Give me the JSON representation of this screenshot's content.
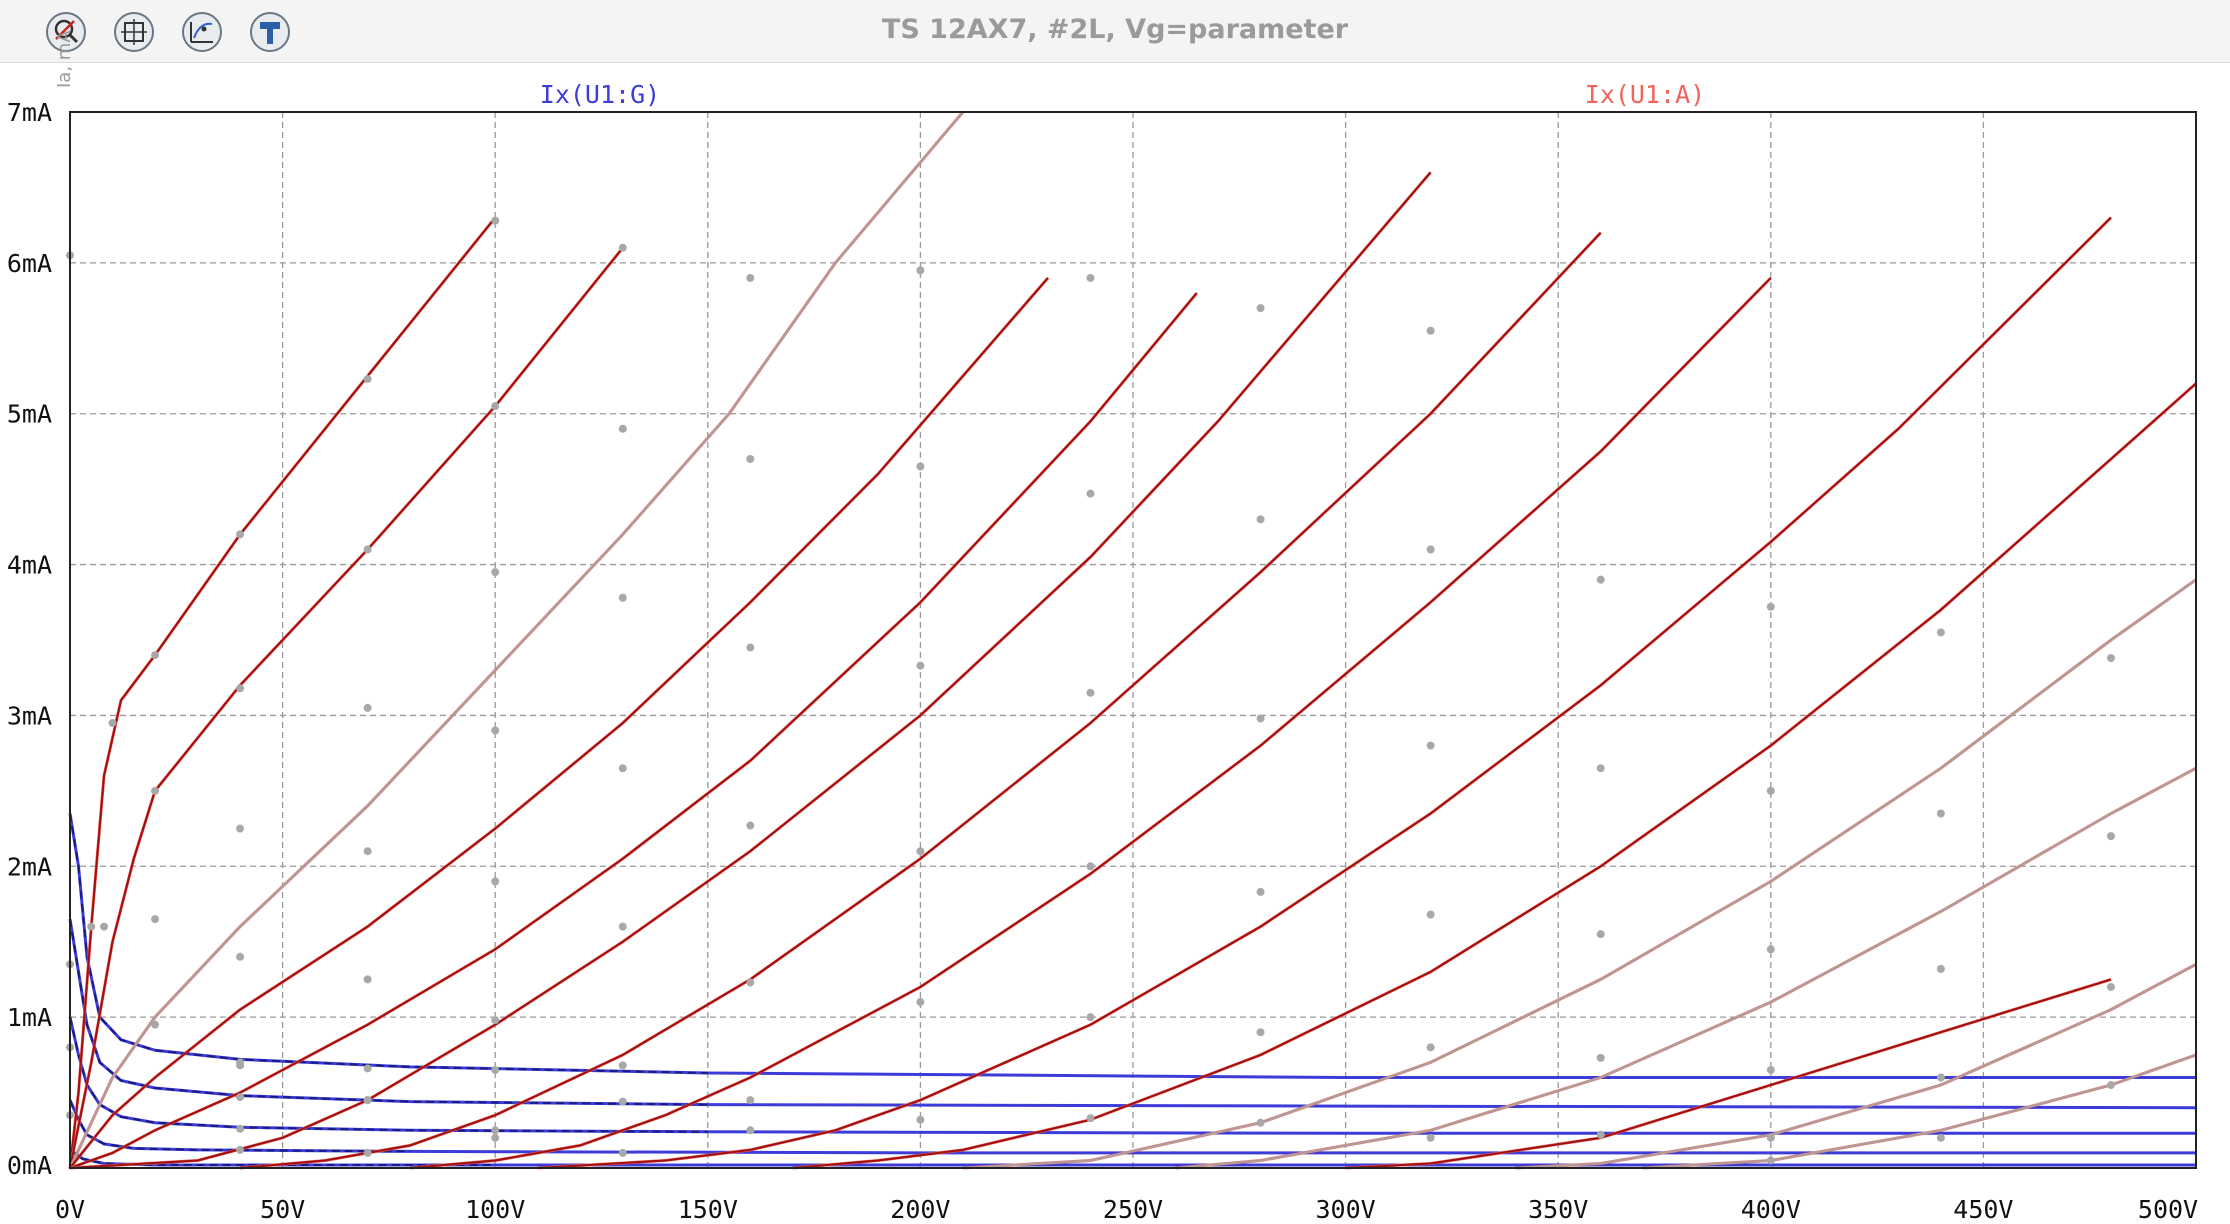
{
  "window": {
    "title": "TS 12AX7, #2L, Vg=parameter",
    "y_axis_label": "Ia, mA",
    "toolbar": [
      {
        "icon": "zoom-cancel-icon"
      },
      {
        "icon": "fit-view-icon"
      },
      {
        "icon": "cursor-probe-icon"
      },
      {
        "icon": "settings-hammer-icon"
      }
    ]
  },
  "chart_data": {
    "type": "line",
    "title": "TS 12AX7, #2L, Vg=parameter",
    "xlabel": "",
    "ylabel": "",
    "x_unit": "V",
    "y_unit": "mA",
    "xlim": [
      0,
      500
    ],
    "ylim": [
      0,
      7
    ],
    "x_ticks": [
      "0V",
      "50V",
      "100V",
      "150V",
      "200V",
      "250V",
      "300V",
      "350V",
      "400V",
      "450V",
      "500V"
    ],
    "y_ticks": [
      "0mA",
      "1mA",
      "2mA",
      "3mA",
      "4mA",
      "5mA",
      "6mA",
      "7mA"
    ],
    "grid": true,
    "legend": [
      {
        "name": "Ix(U1:G)",
        "color": "#3c3cd8",
        "position": "top-left"
      },
      {
        "name": "Ix(U1:A)",
        "color": "#f0645a",
        "position": "top-right"
      }
    ],
    "colors": {
      "anode": "#f0645a",
      "anode_dark": "#a01010",
      "grid": "#9a9a9a",
      "grid_current": "#3c3cd8",
      "measured": "#a8a8a8"
    },
    "anode_curves": [
      {
        "dark": true,
        "points": [
          [
            0,
            0
          ],
          [
            2,
            0.5
          ],
          [
            5,
            1.6
          ],
          [
            8,
            2.6
          ],
          [
            12,
            3.1
          ],
          [
            20,
            3.4
          ],
          [
            40,
            4.2
          ],
          [
            70,
            5.25
          ],
          [
            100,
            6.3
          ]
        ]
      },
      {
        "dark": true,
        "points": [
          [
            0,
            0
          ],
          [
            5,
            0.7
          ],
          [
            10,
            1.5
          ],
          [
            15,
            2.05
          ],
          [
            20,
            2.5
          ],
          [
            40,
            3.2
          ],
          [
            70,
            4.1
          ],
          [
            100,
            5.05
          ],
          [
            130,
            6.1
          ]
        ]
      },
      {
        "dark": false,
        "points": [
          [
            0,
            0
          ],
          [
            10,
            0.6
          ],
          [
            20,
            1.0
          ],
          [
            40,
            1.6
          ],
          [
            70,
            2.4
          ],
          [
            100,
            3.3
          ],
          [
            130,
            4.2
          ],
          [
            155,
            5.0
          ],
          [
            180,
            6.0
          ],
          [
            210,
            7.0
          ]
        ]
      },
      {
        "dark": true,
        "points": [
          [
            0,
            0
          ],
          [
            10,
            0.35
          ],
          [
            20,
            0.6
          ],
          [
            40,
            1.05
          ],
          [
            70,
            1.6
          ],
          [
            100,
            2.25
          ],
          [
            130,
            2.95
          ],
          [
            160,
            3.75
          ],
          [
            190,
            4.6
          ],
          [
            230,
            5.9
          ]
        ]
      },
      {
        "dark": true,
        "points": [
          [
            0,
            0
          ],
          [
            10,
            0.1
          ],
          [
            20,
            0.25
          ],
          [
            40,
            0.5
          ],
          [
            70,
            0.95
          ],
          [
            100,
            1.45
          ],
          [
            130,
            2.05
          ],
          [
            160,
            2.7
          ],
          [
            200,
            3.75
          ],
          [
            240,
            4.95
          ],
          [
            265,
            5.8
          ]
        ]
      },
      {
        "dark": true,
        "points": [
          [
            0,
            0
          ],
          [
            30,
            0.05
          ],
          [
            50,
            0.2
          ],
          [
            70,
            0.45
          ],
          [
            100,
            0.95
          ],
          [
            130,
            1.5
          ],
          [
            160,
            2.1
          ],
          [
            200,
            3.0
          ],
          [
            240,
            4.05
          ],
          [
            270,
            4.95
          ],
          [
            320,
            6.6
          ]
        ]
      },
      {
        "dark": true,
        "points": [
          [
            40,
            0
          ],
          [
            60,
            0.05
          ],
          [
            80,
            0.15
          ],
          [
            100,
            0.35
          ],
          [
            130,
            0.75
          ],
          [
            160,
            1.25
          ],
          [
            200,
            2.05
          ],
          [
            240,
            2.95
          ],
          [
            280,
            3.95
          ],
          [
            320,
            5.0
          ],
          [
            360,
            6.2
          ]
        ]
      },
      {
        "dark": true,
        "points": [
          [
            80,
            0
          ],
          [
            100,
            0.05
          ],
          [
            120,
            0.15
          ],
          [
            140,
            0.35
          ],
          [
            160,
            0.6
          ],
          [
            200,
            1.2
          ],
          [
            240,
            1.95
          ],
          [
            280,
            2.8
          ],
          [
            320,
            3.75
          ],
          [
            360,
            4.75
          ],
          [
            400,
            5.9
          ]
        ]
      },
      {
        "dark": true,
        "points": [
          [
            110,
            0
          ],
          [
            140,
            0.05
          ],
          [
            160,
            0.12
          ],
          [
            180,
            0.25
          ],
          [
            200,
            0.45
          ],
          [
            240,
            0.95
          ],
          [
            280,
            1.6
          ],
          [
            320,
            2.35
          ],
          [
            360,
            3.2
          ],
          [
            400,
            4.15
          ],
          [
            430,
            4.9
          ],
          [
            480,
            6.3
          ]
        ]
      },
      {
        "dark": true,
        "points": [
          [
            170,
            0
          ],
          [
            190,
            0.05
          ],
          [
            210,
            0.12
          ],
          [
            240,
            0.32
          ],
          [
            280,
            0.75
          ],
          [
            320,
            1.3
          ],
          [
            360,
            2.0
          ],
          [
            400,
            2.8
          ],
          [
            440,
            3.7
          ],
          [
            480,
            4.7
          ],
          [
            500,
            5.2
          ]
        ]
      },
      {
        "dark": false,
        "points": [
          [
            210,
            0
          ],
          [
            240,
            0.05
          ],
          [
            280,
            0.3
          ],
          [
            320,
            0.7
          ],
          [
            360,
            1.25
          ],
          [
            400,
            1.9
          ],
          [
            440,
            2.65
          ],
          [
            480,
            3.5
          ],
          [
            500,
            3.9
          ]
        ]
      },
      {
        "dark": false,
        "points": [
          [
            260,
            0
          ],
          [
            280,
            0.05
          ],
          [
            320,
            0.25
          ],
          [
            360,
            0.6
          ],
          [
            400,
            1.1
          ],
          [
            440,
            1.7
          ],
          [
            480,
            2.35
          ],
          [
            500,
            2.65
          ]
        ]
      },
      {
        "dark": true,
        "points": [
          [
            300,
            0
          ],
          [
            320,
            0.03
          ],
          [
            360,
            0.2
          ],
          [
            400,
            0.55
          ],
          [
            440,
            0.9
          ],
          [
            480,
            1.25
          ]
        ]
      },
      {
        "dark": false,
        "points": [
          [
            340,
            0
          ],
          [
            360,
            0.03
          ],
          [
            400,
            0.22
          ],
          [
            440,
            0.55
          ],
          [
            480,
            1.05
          ],
          [
            500,
            1.35
          ]
        ]
      },
      {
        "dark": false,
        "points": [
          [
            370,
            0
          ],
          [
            400,
            0.05
          ],
          [
            440,
            0.25
          ],
          [
            480,
            0.55
          ],
          [
            500,
            0.75
          ]
        ]
      }
    ],
    "grid_curves": [
      {
        "points": [
          [
            0,
            2.35
          ],
          [
            2,
            2.0
          ],
          [
            4,
            1.4
          ],
          [
            7,
            1.0
          ],
          [
            12,
            0.85
          ],
          [
            20,
            0.78
          ],
          [
            40,
            0.72
          ],
          [
            80,
            0.67
          ],
          [
            150,
            0.63
          ],
          [
            300,
            0.6
          ],
          [
            500,
            0.6
          ]
        ]
      },
      {
        "points": [
          [
            0,
            1.65
          ],
          [
            2,
            1.3
          ],
          [
            4,
            0.95
          ],
          [
            7,
            0.7
          ],
          [
            12,
            0.58
          ],
          [
            20,
            0.53
          ],
          [
            40,
            0.48
          ],
          [
            80,
            0.44
          ],
          [
            150,
            0.42
          ],
          [
            300,
            0.41
          ],
          [
            500,
            0.4
          ]
        ]
      },
      {
        "points": [
          [
            0,
            1.0
          ],
          [
            2,
            0.75
          ],
          [
            4,
            0.55
          ],
          [
            7,
            0.42
          ],
          [
            12,
            0.34
          ],
          [
            20,
            0.3
          ],
          [
            40,
            0.27
          ],
          [
            80,
            0.25
          ],
          [
            150,
            0.24
          ],
          [
            300,
            0.23
          ],
          [
            500,
            0.23
          ]
        ]
      },
      {
        "points": [
          [
            0,
            0.45
          ],
          [
            2,
            0.32
          ],
          [
            4,
            0.22
          ],
          [
            8,
            0.16
          ],
          [
            15,
            0.13
          ],
          [
            30,
            0.12
          ],
          [
            80,
            0.11
          ],
          [
            200,
            0.1
          ],
          [
            500,
            0.1
          ]
        ]
      },
      {
        "points": [
          [
            0,
            0.12
          ],
          [
            3,
            0.06
          ],
          [
            8,
            0.03
          ],
          [
            20,
            0.02
          ],
          [
            100,
            0.02
          ],
          [
            500,
            0.02
          ]
        ]
      }
    ],
    "measured_dots": [
      [
        0,
        6.05
      ],
      [
        20,
        3.4
      ],
      [
        40,
        4.2
      ],
      [
        70,
        5.23
      ],
      [
        100,
        6.28
      ],
      [
        10,
        2.95
      ],
      [
        20,
        2.5
      ],
      [
        40,
        3.18
      ],
      [
        70,
        4.1
      ],
      [
        100,
        5.05
      ],
      [
        130,
        6.1
      ],
      [
        20,
        1.65
      ],
      [
        40,
        2.25
      ],
      [
        70,
        3.05
      ],
      [
        100,
        3.95
      ],
      [
        130,
        4.9
      ],
      [
        160,
        5.9
      ],
      [
        20,
        0.95
      ],
      [
        40,
        1.4
      ],
      [
        70,
        2.1
      ],
      [
        100,
        2.9
      ],
      [
        130,
        3.78
      ],
      [
        160,
        4.7
      ],
      [
        200,
        5.95
      ],
      [
        40,
        0.7
      ],
      [
        70,
        1.25
      ],
      [
        100,
        1.9
      ],
      [
        130,
        2.65
      ],
      [
        160,
        3.45
      ],
      [
        200,
        4.65
      ],
      [
        240,
        5.9
      ],
      [
        70,
        0.45
      ],
      [
        100,
        0.98
      ],
      [
        130,
        1.6
      ],
      [
        160,
        2.27
      ],
      [
        200,
        3.33
      ],
      [
        240,
        4.47
      ],
      [
        280,
        5.7
      ],
      [
        100,
        0.2
      ],
      [
        130,
        0.68
      ],
      [
        160,
        1.23
      ],
      [
        200,
        2.1
      ],
      [
        240,
        3.15
      ],
      [
        280,
        4.3
      ],
      [
        320,
        5.55
      ],
      [
        160,
        0.45
      ],
      [
        200,
        1.1
      ],
      [
        240,
        2.0
      ],
      [
        280,
        2.98
      ],
      [
        320,
        4.1
      ],
      [
        200,
        0.32
      ],
      [
        240,
        1.0
      ],
      [
        280,
        1.83
      ],
      [
        320,
        2.8
      ],
      [
        360,
        3.9
      ],
      [
        240,
        0.33
      ],
      [
        280,
        0.9
      ],
      [
        320,
        1.68
      ],
      [
        360,
        2.65
      ],
      [
        400,
        3.72
      ],
      [
        280,
        0.3
      ],
      [
        320,
        0.8
      ],
      [
        360,
        1.55
      ],
      [
        400,
        2.5
      ],
      [
        440,
        3.55
      ],
      [
        320,
        0.2
      ],
      [
        360,
        0.73
      ],
      [
        400,
        1.45
      ],
      [
        440,
        2.35
      ],
      [
        480,
        3.38
      ],
      [
        360,
        0.22
      ],
      [
        400,
        0.65
      ],
      [
        440,
        1.32
      ],
      [
        480,
        2.2
      ],
      [
        400,
        0.2
      ],
      [
        440,
        0.6
      ],
      [
        480,
        1.2
      ],
      [
        400,
        0.05
      ],
      [
        440,
        0.2
      ],
      [
        480,
        0.55
      ],
      [
        0,
        1.35
      ],
      [
        0,
        0.8
      ],
      [
        0,
        0.35
      ],
      [
        5,
        1.6
      ],
      [
        8,
        1.6
      ],
      [
        40,
        0.68
      ],
      [
        70,
        0.66
      ],
      [
        100,
        0.65
      ],
      [
        40,
        0.47
      ],
      [
        70,
        0.45
      ],
      [
        130,
        0.44
      ],
      [
        40,
        0.26
      ],
      [
        100,
        0.25
      ],
      [
        160,
        0.25
      ],
      [
        40,
        0.12
      ],
      [
        70,
        0.1
      ],
      [
        130,
        0.1
      ]
    ]
  }
}
